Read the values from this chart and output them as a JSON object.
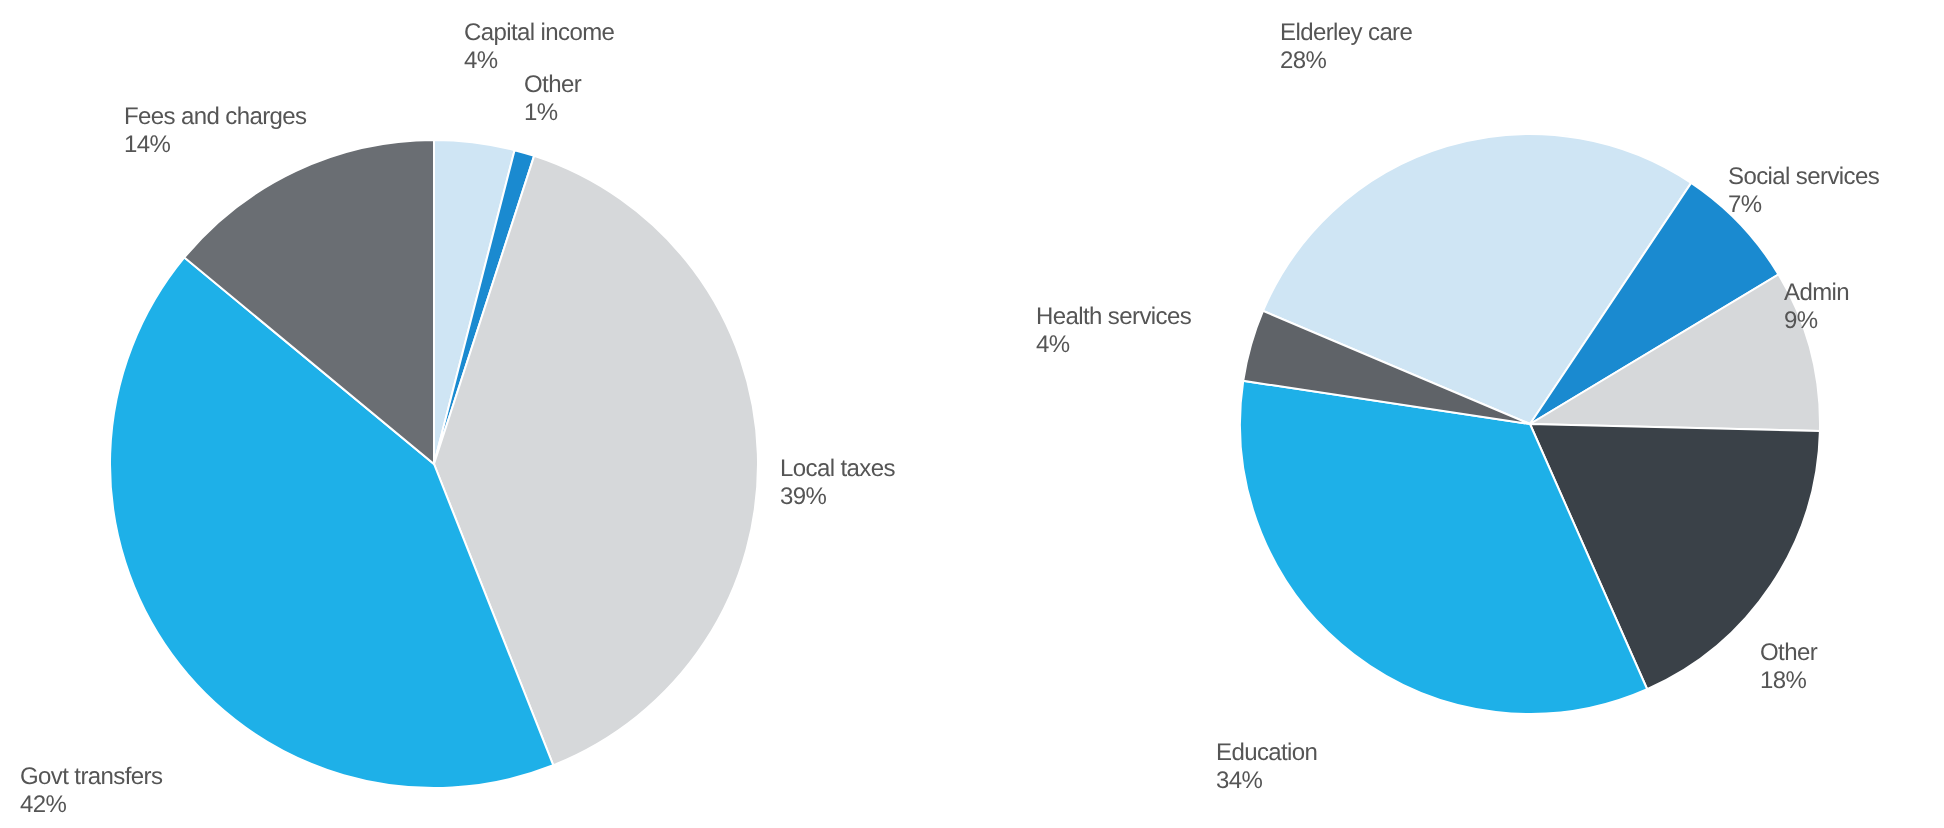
{
  "chart_data": [
    {
      "type": "pie",
      "categories": [
        "Capital income",
        "Other",
        "Local taxes",
        "Govt transfers",
        "Fees and charges"
      ],
      "values": [
        4,
        1,
        39,
        42,
        14
      ],
      "value_labels": [
        "4%",
        "1%",
        "39%",
        "42%",
        "14%"
      ],
      "colors": [
        "#cfe5f4",
        "#1a8ad0",
        "#d6d8da",
        "#1eb0e8",
        "#6a6e73"
      ]
    },
    {
      "type": "pie",
      "categories": [
        "Elderley care",
        "Social services",
        "Admin",
        "Other",
        "Education",
        "Health services"
      ],
      "values": [
        28,
        7,
        9,
        18,
        34,
        4
      ],
      "value_labels": [
        "28%",
        "7%",
        "9%",
        "18%",
        "34%",
        "4%"
      ],
      "colors": [
        "#cfe5f4",
        "#1a8ad0",
        "#d6d8da",
        "#3a4148",
        "#1eb0e8",
        "#5f6368"
      ]
    }
  ]
}
